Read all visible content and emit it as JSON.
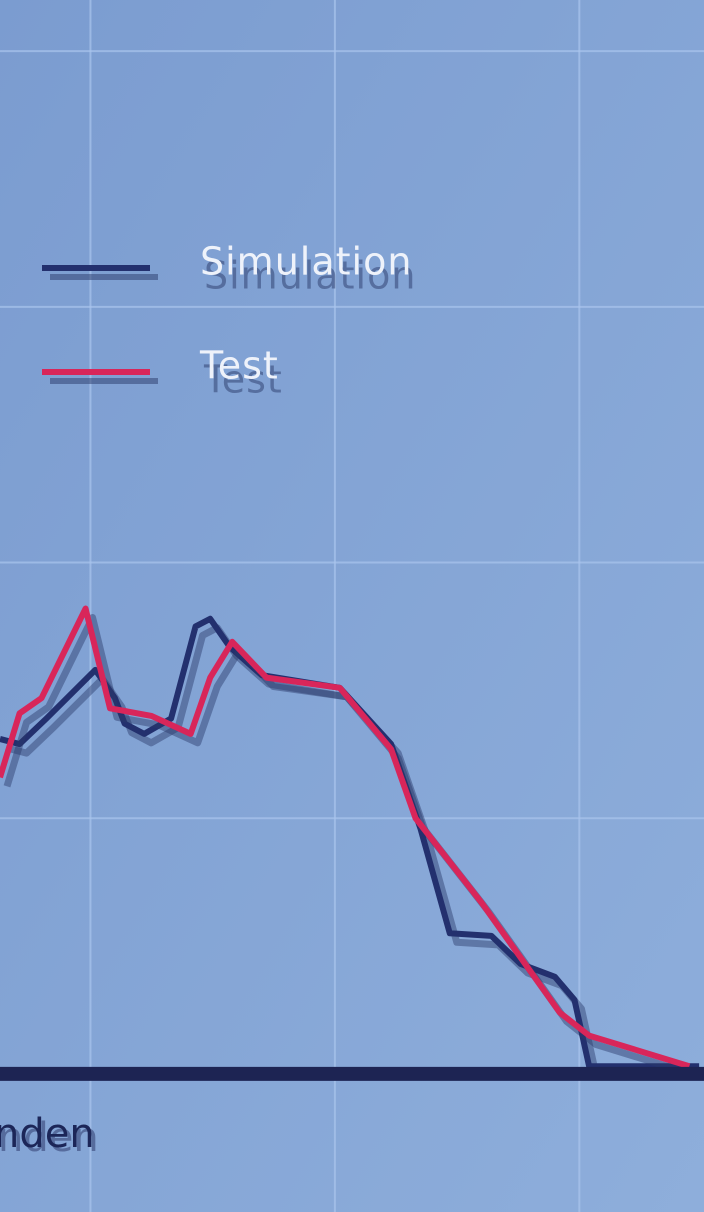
{
  "chart_data": {
    "type": "line",
    "xlabel": "nden",
    "xlim": [
      0.63,
      3.51
    ],
    "ylim": [
      -0.54,
      4.2
    ],
    "xticks": [
      1,
      2,
      3
    ],
    "yticks": [
      0,
      1,
      2,
      3,
      4
    ],
    "grid": true,
    "legend": "upper left",
    "series": [
      {
        "name": "Simulation",
        "color": "#23306e",
        "x": [
          0.63,
          0.71,
          0.82,
          1.02,
          1.1,
          1.14,
          1.22,
          1.33,
          1.43,
          1.49,
          1.57,
          1.7,
          2.02,
          2.23,
          2.35,
          2.47,
          2.64,
          2.76,
          2.9,
          2.98,
          3.04,
          3.49
        ],
        "values": [
          1.31,
          1.29,
          1.39,
          1.58,
          1.47,
          1.37,
          1.33,
          1.39,
          1.75,
          1.78,
          1.67,
          1.56,
          1.51,
          1.29,
          0.96,
          0.55,
          0.54,
          0.43,
          0.38,
          0.29,
          0.03,
          0.03
        ]
      },
      {
        "name": "Test",
        "color": "#d8265a",
        "x": [
          0.63,
          0.71,
          0.8,
          0.98,
          1.08,
          1.25,
          1.41,
          1.49,
          1.58,
          1.72,
          2.02,
          2.23,
          2.33,
          2.6,
          2.92,
          3.04,
          3.45
        ],
        "values": [
          1.16,
          1.41,
          1.47,
          1.82,
          1.43,
          1.4,
          1.33,
          1.55,
          1.69,
          1.55,
          1.51,
          1.27,
          1.0,
          0.67,
          0.24,
          0.15,
          0.03
        ]
      }
    ]
  }
}
